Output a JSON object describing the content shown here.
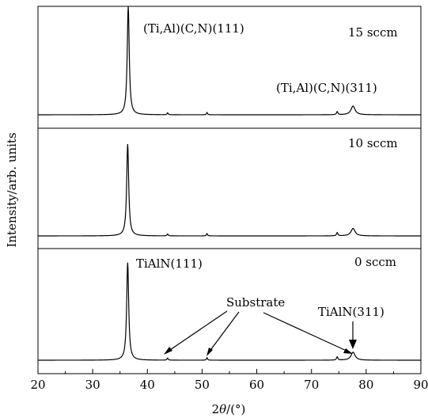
{
  "chart_data": {
    "type": "line",
    "xlabel_prefix": "2",
    "xlabel_var": "θ",
    "xlabel_suffix": "/(°)",
    "ylabel": "Intensity/arb. units",
    "xlim": [
      20,
      90
    ],
    "xticks": [
      "20",
      "30",
      "40",
      "50",
      "60",
      "70",
      "80",
      "90"
    ],
    "y_ticks_shown": false,
    "stacked": true,
    "series": [
      {
        "name": "15 sccm",
        "baseline": 0.02,
        "peaks": [
          {
            "x": 36.5,
            "height": 1.05,
            "width": 0.22
          },
          {
            "x": 43.7,
            "height": 0.018,
            "width": 0.12
          },
          {
            "x": 50.9,
            "height": 0.022,
            "width": 0.12
          },
          {
            "x": 74.7,
            "height": 0.03,
            "width": 0.15
          },
          {
            "x": 77.6,
            "height": 0.085,
            "width": 0.45
          }
        ]
      },
      {
        "name": "10 sccm",
        "baseline": 0.02,
        "peaks": [
          {
            "x": 36.4,
            "height": 0.8,
            "width": 0.22
          },
          {
            "x": 43.7,
            "height": 0.016,
            "width": 0.12
          },
          {
            "x": 50.9,
            "height": 0.02,
            "width": 0.12
          },
          {
            "x": 74.7,
            "height": 0.028,
            "width": 0.15
          },
          {
            "x": 77.6,
            "height": 0.065,
            "width": 0.45
          }
        ]
      },
      {
        "name": "0 sccm",
        "baseline": 0.02,
        "peaks": [
          {
            "x": 36.4,
            "height": 0.85,
            "width": 0.22
          },
          {
            "x": 43.7,
            "height": 0.018,
            "width": 0.12
          },
          {
            "x": 50.9,
            "height": 0.022,
            "width": 0.12
          },
          {
            "x": 74.7,
            "height": 0.028,
            "width": 0.15
          },
          {
            "x": 77.6,
            "height": 0.07,
            "width": 0.45
          }
        ]
      }
    ],
    "annotations": {
      "peak111_top": "(Ti,Al)(C,N)(111)",
      "peak311_top": "(Ti,Al)(C,N)(311)",
      "peak111_bottom": "TiAlN(111)",
      "peak311_bottom": "TiAlN(311)",
      "substrate": "Substrate"
    }
  }
}
